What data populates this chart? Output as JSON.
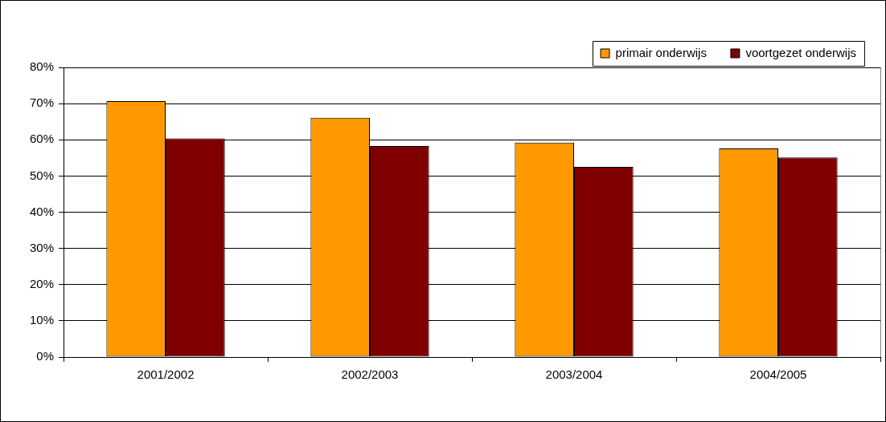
{
  "chart_data": {
    "type": "bar",
    "categories": [
      "2001/2002",
      "2002/2003",
      "2003/2004",
      "2004/2005"
    ],
    "series": [
      {
        "name": "primair onderwijs",
        "color": "#ff9900",
        "values": [
          70.7,
          66.1,
          59.2,
          57.6
        ]
      },
      {
        "name": "voortgezet onderwijs",
        "color": "#800000",
        "values": [
          60.4,
          58.3,
          52.5,
          55.1
        ]
      }
    ],
    "ylim": [
      0,
      80
    ],
    "yticks": [
      {
        "value": 0,
        "label": "0%"
      },
      {
        "value": 10,
        "label": "10%"
      },
      {
        "value": 20,
        "label": "20%"
      },
      {
        "value": 30,
        "label": "30%"
      },
      {
        "value": 40,
        "label": "40%"
      },
      {
        "value": 50,
        "label": "50%"
      },
      {
        "value": 60,
        "label": "60%"
      },
      {
        "value": 70,
        "label": "70%"
      },
      {
        "value": 80,
        "label": "80%"
      }
    ],
    "grid": "y",
    "legend": "top right"
  }
}
